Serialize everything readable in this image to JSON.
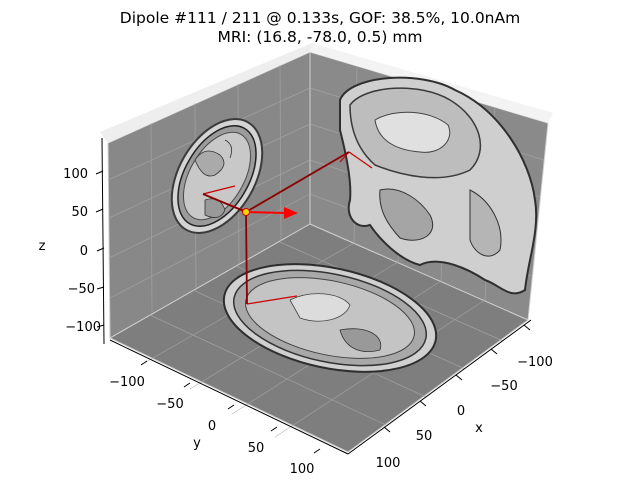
{
  "title": {
    "line1": "Dipole #111 / 211 @ 0.133s, GOF: 38.5%, 10.0nAm",
    "line2": "MRI: (16.8, -78.0, 0.5) mm"
  },
  "chart_data": {
    "type": "scatter",
    "projection": "3d",
    "dipole": {
      "index": 111,
      "total": 211,
      "time_s": 0.133,
      "gof_percent": 38.5,
      "amplitude_nAm": 10.0,
      "mri_position_mm": [
        16.8,
        -78.0,
        0.5
      ]
    },
    "axes": {
      "x": {
        "label": "x",
        "ticks": [
          "100",
          "50",
          "0",
          "−50",
          "−100"
        ]
      },
      "y": {
        "label": "y",
        "ticks": [
          "−100",
          "−50",
          "0",
          "50",
          "100"
        ]
      },
      "z": {
        "label": "z",
        "ticks": [
          "100",
          "50",
          "0",
          "−50",
          "−100"
        ]
      }
    },
    "background_slices": [
      "axial",
      "coronal",
      "sagittal"
    ],
    "colors": {
      "pane": "#8c8c8c",
      "pane_dark": "#6f6f6f",
      "dipole_line": "#8b0000",
      "dipole_arrow": "#ff0000",
      "dipole_marker": "#ffd700"
    }
  }
}
